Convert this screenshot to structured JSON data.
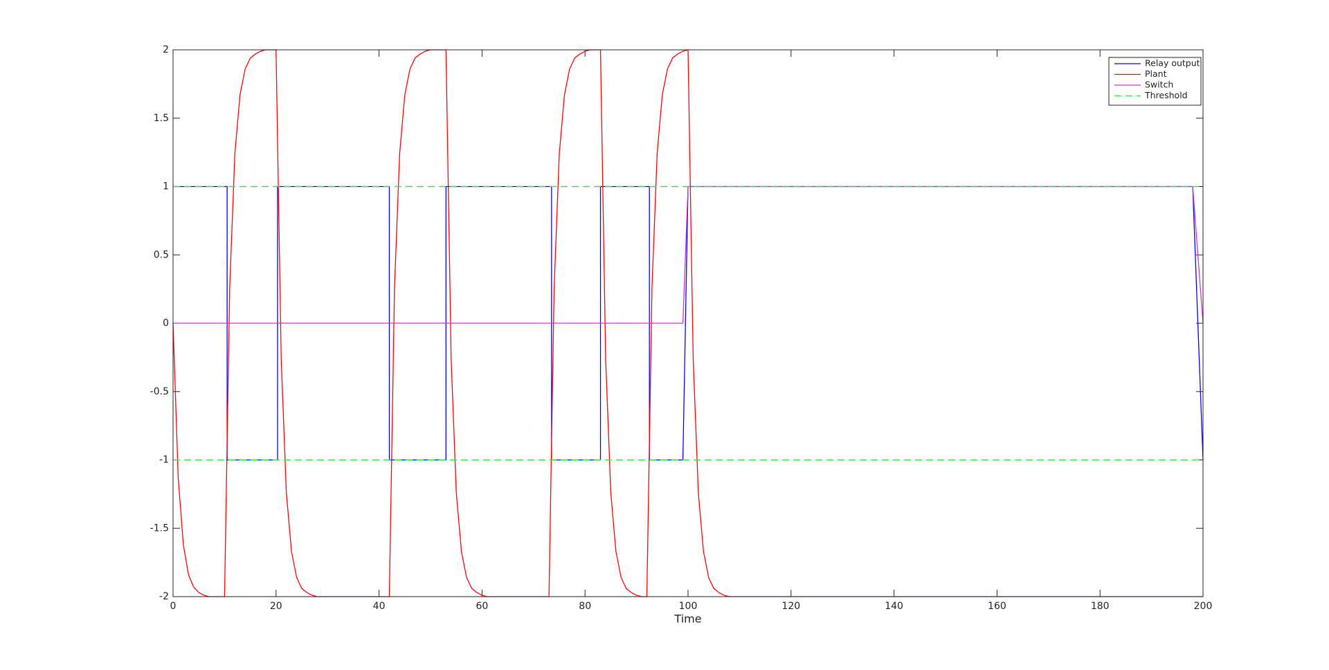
{
  "chart_data": {
    "type": "line",
    "x_label": "Time",
    "xlim": [
      0,
      200
    ],
    "ylim": [
      -2,
      2
    ],
    "xticks": [
      0,
      20,
      40,
      60,
      80,
      100,
      120,
      140,
      160,
      180,
      200
    ],
    "yticks": [
      -2,
      -1.5,
      -1,
      -0.5,
      0,
      0.5,
      1,
      1.5,
      2
    ],
    "legend_position": "upper right",
    "series": [
      {
        "name": "Relay output",
        "color": "#0000ff",
        "style": "solid",
        "x": [
          0,
          10.5,
          10.5,
          20.3,
          20.3,
          42,
          42,
          53,
          53,
          73.5,
          73.5,
          83,
          83,
          92.5,
          92.5,
          99,
          100,
          198,
          200
        ],
        "values": [
          1,
          1,
          -1,
          -1,
          1,
          1,
          -1,
          -1,
          1,
          1,
          -1,
          -1,
          1,
          1,
          -1,
          -1,
          1,
          1,
          -1
        ]
      },
      {
        "name": "Plant",
        "color": "#ff0000",
        "style": "solid",
        "x": [
          0,
          1,
          2,
          3,
          4,
          5,
          6,
          7,
          10,
          11,
          12,
          13,
          14,
          15,
          16,
          17,
          18,
          20,
          21,
          22,
          23,
          24,
          25,
          26,
          27,
          28,
          42,
          43,
          44,
          45,
          46,
          47,
          48,
          49,
          50,
          53,
          54,
          55,
          56,
          57,
          58,
          59,
          60,
          61,
          73,
          74,
          75,
          76,
          77,
          78,
          79,
          80,
          81,
          83,
          84,
          85,
          86,
          87,
          88,
          89,
          90,
          91,
          92,
          93,
          94,
          95,
          96,
          97,
          98,
          99,
          100,
          101,
          102,
          103,
          104,
          105,
          106,
          107,
          108,
          200
        ],
        "values": [
          0,
          -1.13,
          -1.62,
          -1.84,
          -1.93,
          -1.97,
          -1.99,
          -2,
          -2,
          0.26,
          1.24,
          1.67,
          1.86,
          1.94,
          1.97,
          1.99,
          2,
          2,
          -0.26,
          -1.24,
          -1.67,
          -1.86,
          -1.94,
          -1.97,
          -1.99,
          -2,
          -2,
          0.26,
          1.24,
          1.67,
          1.86,
          1.94,
          1.97,
          1.99,
          2,
          2,
          -0.26,
          -1.24,
          -1.67,
          -1.86,
          -1.94,
          -1.97,
          -1.99,
          -2,
          -2,
          0.26,
          1.24,
          1.67,
          1.86,
          1.94,
          1.97,
          1.99,
          2,
          2,
          -0.26,
          -1.24,
          -1.67,
          -1.86,
          -1.94,
          -1.97,
          -1.99,
          -2,
          -2,
          0.26,
          1.24,
          1.67,
          1.86,
          1.94,
          1.97,
          1.99,
          2,
          -0.26,
          -1.24,
          -1.67,
          -1.86,
          -1.94,
          -1.97,
          -1.99,
          -2,
          -2
        ]
      },
      {
        "name": "Switch",
        "color": "#cc33cc",
        "style": "solid",
        "x": [
          0,
          99,
          100,
          198,
          200
        ],
        "values": [
          0,
          0,
          1,
          1,
          0
        ]
      },
      {
        "name": "Threshold",
        "color": "#44dd44",
        "style": "dashed",
        "x": [
          0,
          200,
          null,
          0,
          200
        ],
        "values": [
          1,
          1,
          null,
          -1,
          -1
        ]
      }
    ]
  }
}
